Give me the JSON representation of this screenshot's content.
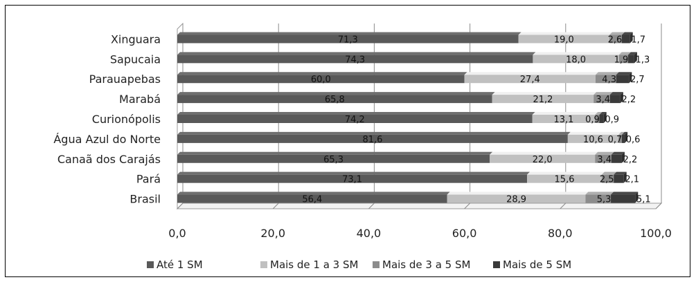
{
  "chart_data": {
    "type": "bar",
    "orientation": "horizontal",
    "stacked": true,
    "categories": [
      "Xinguara",
      "Sapucaia",
      "Parauapebas",
      "Marabá",
      "Curionópolis",
      "Água Azul do Norte",
      "Canaã dos Carajás",
      "Pará",
      "Brasil"
    ],
    "series": [
      {
        "name": "Até 1 SM",
        "color": "#595959",
        "values": [
          71.3,
          74.3,
          60.0,
          65.8,
          74.2,
          81.6,
          65.3,
          73.1,
          56.4
        ],
        "labels": [
          "71,3",
          "74,3",
          "60,0",
          "65,8",
          "74,2",
          "81,6",
          "65,3",
          "73,1",
          "56,4"
        ]
      },
      {
        "name": "Mais de 1 a 3 SM",
        "color": "#c0c0c0",
        "values": [
          19.0,
          18.0,
          27.4,
          21.2,
          13.1,
          10.6,
          22.0,
          15.6,
          28.9
        ],
        "labels": [
          "19,0",
          "18,0",
          "27,4",
          "21,2",
          "13,1",
          "10,6",
          "22,0",
          "15,6",
          "28,9"
        ]
      },
      {
        "name": "Mais de 3 a 5 SM",
        "color": "#8c8c8c",
        "values": [
          2.6,
          1.9,
          4.3,
          3.4,
          0.9,
          0.7,
          3.4,
          2.5,
          5.3
        ],
        "labels": [
          "2,6",
          "1,9",
          "4,3",
          "3,4",
          "0,9",
          "0,7",
          "3,4",
          "2,5",
          "5,3"
        ]
      },
      {
        "name": "Mais de 5 SM",
        "color": "#3a3a3a",
        "values": [
          1.7,
          1.3,
          2.7,
          2.2,
          0.9,
          0.6,
          2.2,
          2.1,
          5.1
        ],
        "labels": [
          "1,7",
          "1,3",
          "2,7",
          "2,2",
          "0,9",
          "0,6",
          "2,2",
          "2,1",
          "5,1"
        ]
      }
    ],
    "xlim": [
      0,
      100
    ],
    "xticks": [
      "0,0",
      "20,0",
      "40,0",
      "60,0",
      "80,0",
      "100,0"
    ],
    "grid": true,
    "legend_position": "bottom",
    "title": "",
    "xlabel": "",
    "ylabel": ""
  }
}
